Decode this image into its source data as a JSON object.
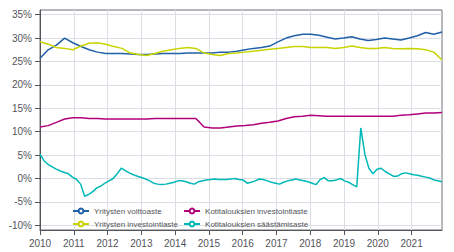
{
  "chart_data": {
    "type": "line",
    "xlim": [
      2010,
      2021.9
    ],
    "ylim": [
      -0.11,
      0.36
    ],
    "xticks": [
      2010,
      2011,
      2012,
      2013,
      2014,
      2015,
      2016,
      2017,
      2018,
      2019,
      2020,
      2021
    ],
    "yticks": [
      {
        "value": -0.1,
        "label": "-10%"
      },
      {
        "value": -0.05,
        "label": "-5%"
      },
      {
        "value": 0.0,
        "label": "0%"
      },
      {
        "value": 0.05,
        "label": "5%"
      },
      {
        "value": 0.1,
        "label": "10%"
      },
      {
        "value": 0.15,
        "label": "15%"
      },
      {
        "value": 0.2,
        "label": "20%"
      },
      {
        "value": 0.25,
        "label": "25%"
      },
      {
        "value": 0.3,
        "label": "30%"
      },
      {
        "value": 0.35,
        "label": "35%"
      }
    ],
    "grid": true,
    "legend": "lower left",
    "series": [
      {
        "name": "Yritysten voittoaste",
        "color": "#2060a8",
        "x": [
          2010,
          2010.2429,
          2010.4857,
          2010.7286,
          2010.9714,
          2011.2143,
          2011.4571,
          2011.7,
          2011.9429,
          2012.1857,
          2012.4286,
          2012.6714,
          2012.9143,
          2013.1571,
          2013.4,
          2013.6429,
          2013.8857,
          2014.1286,
          2014.3714,
          2014.6143,
          2014.8571,
          2015.1,
          2015.3429,
          2015.5857,
          2015.8286,
          2016.0714,
          2016.3143,
          2016.5571,
          2016.8,
          2017.0429,
          2017.2857,
          2017.5286,
          2017.7714,
          2018.0143,
          2018.2571,
          2018.5,
          2018.7429,
          2018.9857,
          2019.2286,
          2019.4714,
          2019.7143,
          2019.9571,
          2020.2,
          2020.4429,
          2020.6857,
          2020.9286,
          2021.1714,
          2021.4143,
          2021.6571,
          2021.9
        ],
        "values": [
          0.257,
          0.275,
          0.285,
          0.3,
          0.29,
          0.282,
          0.275,
          0.27,
          0.267,
          0.267,
          0.267,
          0.266,
          0.265,
          0.265,
          0.266,
          0.267,
          0.267,
          0.267,
          0.268,
          0.268,
          0.268,
          0.268,
          0.27,
          0.27,
          0.272,
          0.275,
          0.278,
          0.28,
          0.283,
          0.292,
          0.3,
          0.305,
          0.308,
          0.308,
          0.306,
          0.302,
          0.298,
          0.3,
          0.303,
          0.298,
          0.295,
          0.297,
          0.3,
          0.298,
          0.296,
          0.3,
          0.305,
          0.312,
          0.308,
          0.313
        ]
      },
      {
        "name": "Yritysten investointiaste",
        "color": "#c8d400",
        "x": [
          2010,
          2010.2429,
          2010.4857,
          2010.7286,
          2010.9714,
          2011.2143,
          2011.4571,
          2011.7,
          2011.9429,
          2012.1857,
          2012.4286,
          2012.6714,
          2012.9143,
          2013.1571,
          2013.4,
          2013.6429,
          2013.8857,
          2014.1286,
          2014.3714,
          2014.6143,
          2014.8571,
          2015.1,
          2015.3429,
          2015.5857,
          2015.8286,
          2016.0714,
          2016.3143,
          2016.5571,
          2016.8,
          2017.0429,
          2017.2857,
          2017.5286,
          2017.7714,
          2018.0143,
          2018.2571,
          2018.5,
          2018.7429,
          2018.9857,
          2019.2286,
          2019.4714,
          2019.7143,
          2019.9571,
          2020.2,
          2020.4429,
          2020.6857,
          2020.9286,
          2021.1714,
          2021.4143,
          2021.6571,
          2021.9
        ],
        "values": [
          0.292,
          0.287,
          0.28,
          0.278,
          0.275,
          0.283,
          0.289,
          0.29,
          0.287,
          0.282,
          0.278,
          0.268,
          0.265,
          0.263,
          0.267,
          0.272,
          0.275,
          0.278,
          0.28,
          0.278,
          0.268,
          0.265,
          0.263,
          0.267,
          0.268,
          0.27,
          0.272,
          0.274,
          0.276,
          0.278,
          0.28,
          0.282,
          0.282,
          0.28,
          0.28,
          0.28,
          0.278,
          0.28,
          0.283,
          0.28,
          0.278,
          0.278,
          0.28,
          0.278,
          0.277,
          0.278,
          0.277,
          0.275,
          0.27,
          0.253
        ]
      },
      {
        "name": "Kotitalouksien investointiaste",
        "color": "#b0007a",
        "x": [
          2010,
          2010.2429,
          2010.4857,
          2010.7286,
          2010.9714,
          2011.2143,
          2011.4571,
          2011.7,
          2011.9429,
          2012.1857,
          2012.4286,
          2012.6714,
          2012.9143,
          2013.1571,
          2013.4,
          2013.6429,
          2013.8857,
          2014.1286,
          2014.3714,
          2014.6143,
          2014.8571,
          2015.1,
          2015.3429,
          2015.5857,
          2015.8286,
          2016.0714,
          2016.3143,
          2016.5571,
          2016.8,
          2017.0429,
          2017.2857,
          2017.5286,
          2017.7714,
          2018.0143,
          2018.2571,
          2018.5,
          2018.7429,
          2018.9857,
          2019.2286,
          2019.4714,
          2019.7143,
          2019.9571,
          2020.2,
          2020.4429,
          2020.6857,
          2020.9286,
          2021.1714,
          2021.4143,
          2021.6571,
          2021.9
        ],
        "values": [
          0.11,
          0.113,
          0.12,
          0.127,
          0.13,
          0.13,
          0.128,
          0.128,
          0.127,
          0.127,
          0.127,
          0.127,
          0.127,
          0.127,
          0.128,
          0.128,
          0.128,
          0.128,
          0.128,
          0.128,
          0.11,
          0.108,
          0.108,
          0.11,
          0.112,
          0.113,
          0.115,
          0.118,
          0.12,
          0.123,
          0.128,
          0.132,
          0.133,
          0.135,
          0.134,
          0.133,
          0.133,
          0.133,
          0.133,
          0.133,
          0.133,
          0.133,
          0.133,
          0.133,
          0.135,
          0.136,
          0.138,
          0.14,
          0.14,
          0.141
        ]
      },
      {
        "name": "Kotitalouksien säästämisaste",
        "color": "#00b8b8",
        "x": [
          2010,
          2010.1202,
          2010.2404,
          2010.3606,
          2010.4808,
          2010.601,
          2010.7212,
          2010.8414,
          2010.9616,
          2011.0818,
          2011.202,
          2011.3222,
          2011.4424,
          2011.5626,
          2011.6828,
          2011.803,
          2011.9232,
          2012.0434,
          2012.1636,
          2012.2838,
          2012.404,
          2012.5242,
          2012.6444,
          2012.7646,
          2012.8848,
          2013.0051,
          2013.1253,
          2013.2455,
          2013.3657,
          2013.4859,
          2013.6061,
          2013.7263,
          2013.8465,
          2013.9667,
          2014.0869,
          2014.2071,
          2014.3273,
          2014.4475,
          2014.5677,
          2014.6879,
          2014.8081,
          2014.9283,
          2015.0485,
          2015.1687,
          2015.2889,
          2015.4091,
          2015.5293,
          2015.6495,
          2015.7697,
          2015.8899,
          2016.0101,
          2016.1303,
          2016.2505,
          2016.3707,
          2016.4909,
          2016.6111,
          2016.7313,
          2016.8515,
          2016.9717,
          2017.0919,
          2017.2121,
          2017.3323,
          2017.4525,
          2017.5727,
          2017.6929,
          2017.8131,
          2017.9333,
          2018.0535,
          2018.1737,
          2018.2939,
          2018.4141,
          2018.5343,
          2018.6545,
          2018.7747,
          2018.8949,
          2019.0152,
          2019.1354,
          2019.2556,
          2019.3758,
          2019.496,
          2019.6162,
          2019.7364,
          2019.8566,
          2019.9768,
          2020.097,
          2020.2172,
          2020.3374,
          2020.4576,
          2020.5778,
          2020.698,
          2020.8182,
          2020.9384,
          2021.0586,
          2021.1788,
          2021.299,
          2021.4192,
          2021.5394,
          2021.6596,
          2021.7798,
          2021.9
        ],
        "values": [
          0.052,
          0.038,
          0.03,
          0.025,
          0.02,
          0.016,
          0.013,
          0.01,
          0.003,
          -0.002,
          -0.012,
          -0.038,
          -0.034,
          -0.028,
          -0.02,
          -0.016,
          -0.01,
          -0.005,
          0.0,
          0.01,
          0.022,
          0.017,
          0.012,
          0.008,
          0.005,
          0.002,
          -0.001,
          -0.005,
          -0.01,
          -0.012,
          -0.013,
          -0.012,
          -0.01,
          -0.008,
          -0.005,
          -0.005,
          -0.007,
          -0.01,
          -0.012,
          -0.007,
          -0.005,
          -0.003,
          -0.002,
          -0.001,
          -0.002,
          -0.002,
          -0.002,
          -0.001,
          0.0,
          -0.002,
          -0.003,
          -0.01,
          -0.008,
          -0.005,
          -0.001,
          -0.002,
          -0.005,
          -0.008,
          -0.01,
          -0.012,
          -0.008,
          -0.005,
          -0.003,
          -0.001,
          -0.003,
          -0.005,
          -0.007,
          -0.01,
          -0.013,
          -0.002,
          0.002,
          -0.005,
          -0.005,
          -0.003,
          0.0,
          -0.005,
          -0.008,
          -0.013,
          -0.018,
          0.108,
          0.052,
          0.022,
          0.01,
          0.02,
          0.022,
          0.015,
          0.01,
          0.005,
          0.005,
          0.01,
          0.012,
          0.01,
          0.008,
          0.007,
          0.005,
          0.003,
          0.001,
          -0.003,
          -0.005,
          -0.007
        ]
      }
    ]
  }
}
